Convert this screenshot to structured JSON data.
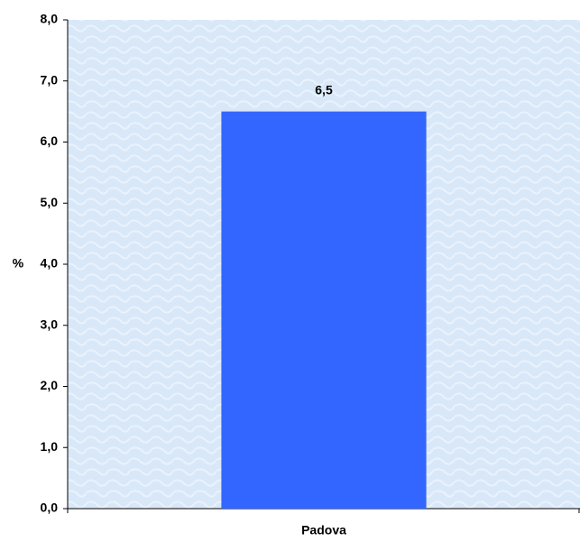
{
  "chart_data": {
    "type": "bar",
    "y_label": "%",
    "categories": [
      "Padova"
    ],
    "values": [
      6.5
    ],
    "value_labels": [
      "6,5"
    ],
    "color": "#3366ff",
    "ylim": [
      0,
      8
    ],
    "yticks": [
      {
        "value": 0,
        "label": "0,0"
      },
      {
        "value": 1,
        "label": "1,0"
      },
      {
        "value": 2,
        "label": "2,0"
      },
      {
        "value": 3,
        "label": "3,0"
      },
      {
        "value": 4,
        "label": "4,0"
      },
      {
        "value": 5,
        "label": "5,0"
      },
      {
        "value": 6,
        "label": "6,0"
      },
      {
        "value": 7,
        "label": "7,0"
      },
      {
        "value": 8,
        "label": "8,0"
      }
    ],
    "grid": false
  }
}
